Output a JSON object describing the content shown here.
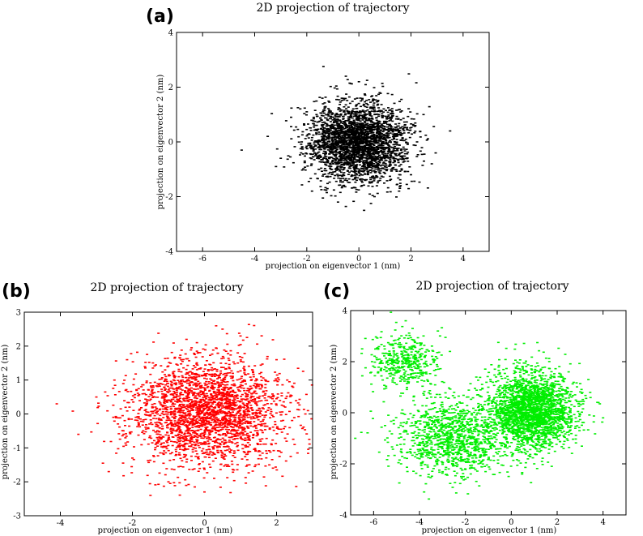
{
  "chart_data": [
    {
      "type": "scatter",
      "panel_label": "(a)",
      "title": "2D projection of trajectory",
      "xlabel": "projection on eigenvector 1 (nm)",
      "ylabel": "projection on eigenvector 2 (nm)",
      "xlim": [
        -7,
        5
      ],
      "ylim": [
        -4,
        4
      ],
      "xticks": [
        -6,
        -4,
        -2,
        0,
        2,
        4
      ],
      "yticks": [
        -4,
        -2,
        0,
        2,
        4
      ],
      "color": "#000000",
      "series": [
        {
          "x": [
            -0.2,
            0.3,
            -1.0,
            1.2,
            -2.0,
            2.0,
            -3.0,
            3.5,
            -4.5,
            0.0,
            -0.8,
            0.8,
            -1.8,
            1.6,
            -3.5,
            2.8,
            0.2,
            -0.5,
            0.6,
            -2.6
          ],
          "y": [
            0.0,
            0.6,
            -0.8,
            0.9,
            1.1,
            -1.2,
            -0.6,
            0.4,
            -0.3,
            2.2,
            -2.2,
            1.8,
            -1.8,
            -1.6,
            0.2,
            -0.8,
            -2.5,
            2.4,
            -2.0,
            0.9
          ]
        }
      ],
      "clusters": [
        {
          "cx": -0.05,
          "cy": 0.0,
          "sx": 0.95,
          "sy": 0.72,
          "n": 2800
        }
      ]
    },
    {
      "type": "scatter",
      "panel_label": "(b)",
      "title": "2D projection of trajectory",
      "xlabel": "projection on eigenvector 1 (nm)",
      "ylabel": "projection on eigenvector 2 (nm)",
      "xlim": [
        -5,
        3
      ],
      "ylim": [
        -3,
        3
      ],
      "xticks": [
        -4,
        -2,
        0,
        2
      ],
      "yticks": [
        -3,
        -2,
        -1,
        0,
        1,
        2,
        3
      ],
      "color": "#ff0000",
      "series": [
        {
          "x": [
            -4.1,
            -3.5,
            -3.0,
            2.8,
            2.5,
            -1.5,
            0.5,
            1.0,
            -2.5,
            0.0,
            -0.5,
            1.8,
            -1.0,
            2.0,
            -2.0
          ],
          "y": [
            0.3,
            -0.6,
            0.5,
            0.0,
            -0.9,
            -2.4,
            2.5,
            2.3,
            1.0,
            -2.3,
            2.2,
            -1.5,
            -2.0,
            1.6,
            -1.3
          ]
        }
      ],
      "clusters": [
        {
          "cx": 0.05,
          "cy": 0.05,
          "sx": 1.05,
          "sy": 0.78,
          "n": 2600
        }
      ]
    },
    {
      "type": "scatter",
      "panel_label": "(c)",
      "title": "2D projection of trajectory",
      "xlabel": "projection on eigenvector 1 (nm)",
      "ylabel": "projection on eigenvector 2 (nm)",
      "xlim": [
        -7,
        5
      ],
      "ylim": [
        -4,
        4
      ],
      "xticks": [
        -6,
        -4,
        -2,
        0,
        2,
        4
      ],
      "yticks": [
        -4,
        -2,
        0,
        2,
        4
      ],
      "color": "#00ee00",
      "series": [
        {
          "x": [
            -6.5,
            -5.8,
            -4.6,
            -4.3,
            -3.2,
            3.8,
            4.0,
            -6.8,
            -2.0,
            -3.8,
            -4.8,
            2.5,
            1.0,
            -1.0,
            -5.5
          ],
          "y": [
            2.5,
            1.6,
            3.6,
            3.3,
            3.2,
            0.4,
            -0.2,
            -1.0,
            -2.6,
            -3.1,
            -2.0,
            1.6,
            -2.0,
            1.0,
            -0.5
          ]
        }
      ],
      "clusters": [
        {
          "cx": 0.9,
          "cy": 0.1,
          "sx": 0.95,
          "sy": 0.78,
          "n": 2300
        },
        {
          "cx": -2.6,
          "cy": -1.0,
          "sx": 1.3,
          "sy": 0.75,
          "n": 1100
        },
        {
          "cx": -4.6,
          "cy": 2.0,
          "sx": 0.75,
          "sy": 0.55,
          "n": 420
        }
      ]
    }
  ]
}
